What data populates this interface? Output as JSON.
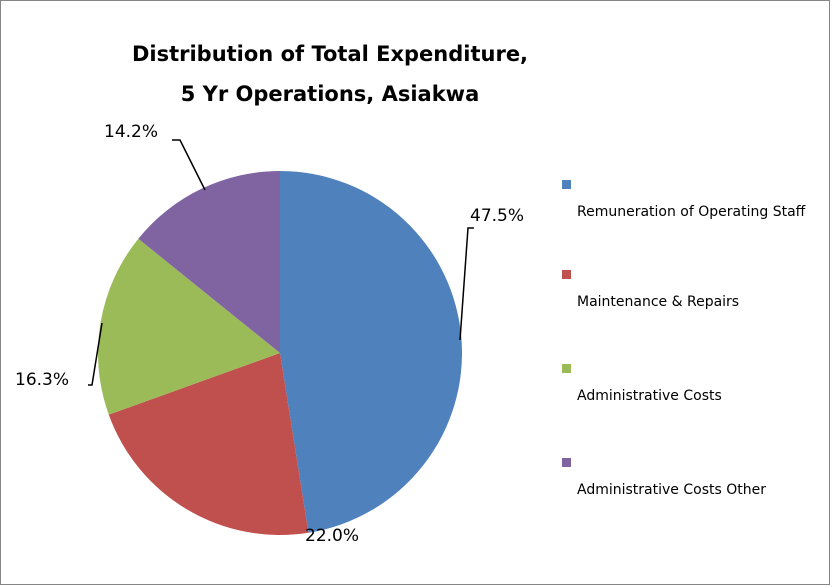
{
  "chart_data": {
    "type": "pie",
    "title": "Distribution of Total Expenditure, 5 Yr Operations, Asiakwa",
    "categories": [
      "Remuneration of Operating Staff",
      "Maintenance & Repairs",
      "Administrative Costs",
      "Administrative Costs Other"
    ],
    "values": [
      47.5,
      22.0,
      16.3,
      14.2
    ],
    "value_labels": [
      "47.5%",
      "22.0%",
      "16.3%",
      "14.2%"
    ],
    "colors": [
      "#4f81bd",
      "#c0504d",
      "#9bbb59",
      "#8064a2"
    ],
    "legend": "right"
  }
}
